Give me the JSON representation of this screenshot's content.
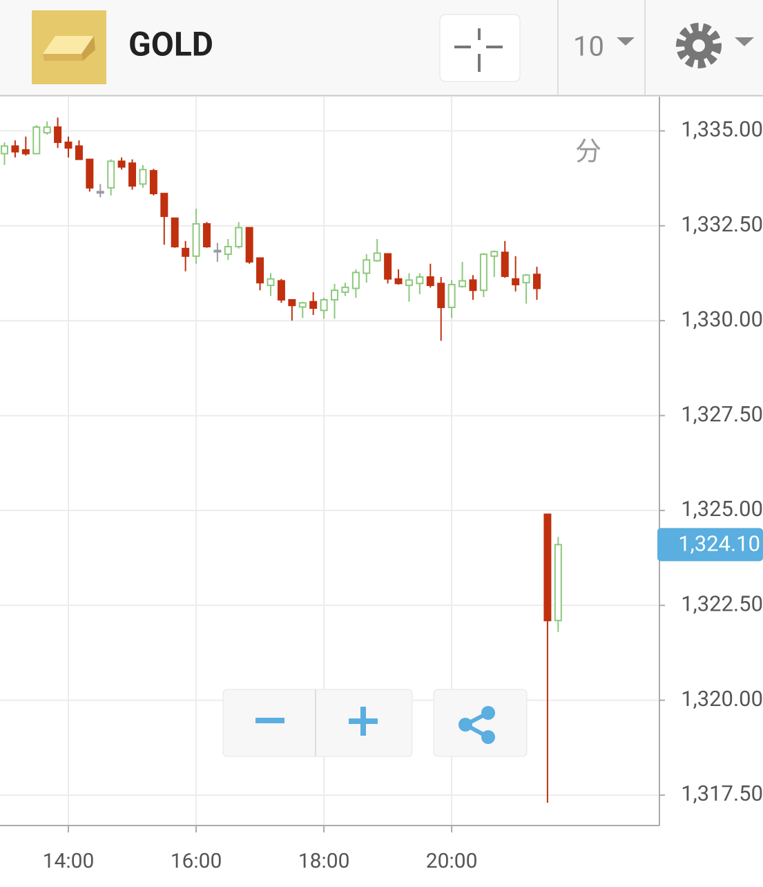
{
  "header": {
    "symbol": "GOLD",
    "interval": "10"
  },
  "chart_data": {
    "type": "candlestick",
    "interval_label": "分",
    "x": [
      "13:00",
      "13:10",
      "13:20",
      "13:30",
      "13:40",
      "13:50",
      "14:00",
      "14:10",
      "14:20",
      "14:30",
      "14:40",
      "14:50",
      "15:00",
      "15:10",
      "15:20",
      "15:30",
      "15:40",
      "15:50",
      "16:00",
      "16:10",
      "16:20",
      "16:30",
      "16:40",
      "16:50",
      "17:00",
      "17:10",
      "17:20",
      "17:30",
      "17:40",
      "17:50",
      "18:00",
      "18:10",
      "18:20",
      "18:30",
      "18:40",
      "18:50",
      "19:00",
      "19:10",
      "19:20",
      "19:30",
      "19:40",
      "19:50",
      "20:00",
      "20:10",
      "20:20",
      "20:30",
      "20:40",
      "20:50",
      "21:00",
      "21:10",
      "21:20",
      "21:30",
      "21:40"
    ],
    "open": [
      1334.4,
      1334.6,
      1334.5,
      1334.4,
      1334.95,
      1335.1,
      1334.7,
      1334.6,
      1334.25,
      1333.4,
      1333.5,
      1334.2,
      1334.15,
      1333.6,
      1333.95,
      1333.35,
      1332.7,
      1331.9,
      1331.7,
      1332.55,
      1331.85,
      1331.75,
      1331.95,
      1332.45,
      1331.65,
      1330.93,
      1331.05,
      1330.55,
      1330.36,
      1330.5,
      1330.27,
      1330.55,
      1330.75,
      1330.85,
      1331.25,
      1331.58,
      1331.76,
      1331.1,
      1330.93,
      1330.98,
      1331.15,
      1330.98,
      1330.35,
      1330.9,
      1331.07,
      1330.8,
      1331.7,
      1331.8,
      1331.1,
      1331.0,
      1331.22,
      1324.9,
      1322.1
    ],
    "high": [
      1334.7,
      1334.75,
      1334.85,
      1335.15,
      1335.25,
      1335.35,
      1334.85,
      1334.75,
      1334.25,
      1333.6,
      1334.25,
      1334.3,
      1334.25,
      1334.1,
      1334.0,
      1333.35,
      1332.7,
      1332.1,
      1332.95,
      1332.6,
      1332.05,
      1332.15,
      1332.6,
      1332.45,
      1331.65,
      1331.25,
      1331.1,
      1330.55,
      1330.5,
      1330.75,
      1330.6,
      1330.97,
      1331.0,
      1331.35,
      1331.75,
      1332.15,
      1331.76,
      1331.35,
      1331.25,
      1331.25,
      1331.5,
      1331.15,
      1331.07,
      1331.55,
      1331.2,
      1331.78,
      1331.85,
      1332.1,
      1331.7,
      1331.23,
      1331.42,
      1324.9,
      1324.3
    ],
    "low": [
      1334.1,
      1334.3,
      1334.35,
      1334.4,
      1334.9,
      1334.55,
      1334.3,
      1334.25,
      1333.4,
      1333.25,
      1333.3,
      1333.98,
      1333.45,
      1333.5,
      1333.3,
      1332.0,
      1331.92,
      1331.3,
      1331.5,
      1331.92,
      1331.55,
      1331.6,
      1331.9,
      1331.5,
      1330.8,
      1330.65,
      1330.47,
      1330.0,
      1330.07,
      1330.15,
      1330.05,
      1330.05,
      1330.65,
      1330.6,
      1331.0,
      1331.55,
      1330.98,
      1330.95,
      1330.5,
      1330.7,
      1330.87,
      1329.47,
      1330.07,
      1330.87,
      1330.55,
      1330.62,
      1331.15,
      1331.13,
      1330.77,
      1330.45,
      1330.55,
      1317.3,
      1321.8
    ],
    "close": [
      1334.6,
      1334.45,
      1334.4,
      1335.1,
      1335.1,
      1334.7,
      1334.55,
      1334.25,
      1333.5,
      1333.4,
      1334.2,
      1334.05,
      1333.55,
      1333.98,
      1333.35,
      1332.75,
      1331.95,
      1331.7,
      1332.55,
      1331.95,
      1331.85,
      1331.95,
      1332.45,
      1331.55,
      1331.0,
      1331.1,
      1330.55,
      1330.4,
      1330.47,
      1330.33,
      1330.55,
      1330.8,
      1330.88,
      1331.27,
      1331.6,
      1331.78,
      1331.1,
      1330.98,
      1331.07,
      1331.15,
      1330.93,
      1330.35,
      1330.95,
      1331.05,
      1330.8,
      1331.75,
      1331.82,
      1331.17,
      1330.95,
      1331.2,
      1330.85,
      1322.1,
      1324.1
    ],
    "up_color": "#8cc87c",
    "down_color": "#c0300f",
    "flat_color": "#9a9aa2",
    "last_price": {
      "value": 1324.1,
      "label": "1,324.10"
    },
    "ylim": [
      1316.7,
      1335.9
    ],
    "yticks": [
      {
        "value": 1317.5,
        "label": "1,317.50"
      },
      {
        "value": 1320,
        "label": "1,320.00"
      },
      {
        "value": 1322.5,
        "label": "1,322.50"
      },
      {
        "value": 1325,
        "label": "1,325.00"
      },
      {
        "value": 1327.5,
        "label": "1,327.50"
      },
      {
        "value": 1330,
        "label": "1,330.00"
      },
      {
        "value": 1332.5,
        "label": "1,332.50"
      },
      {
        "value": 1335,
        "label": "1,335.00"
      }
    ],
    "xticks": [
      "14:00",
      "16:00",
      "18:00",
      "20:00"
    ],
    "grid": true
  }
}
